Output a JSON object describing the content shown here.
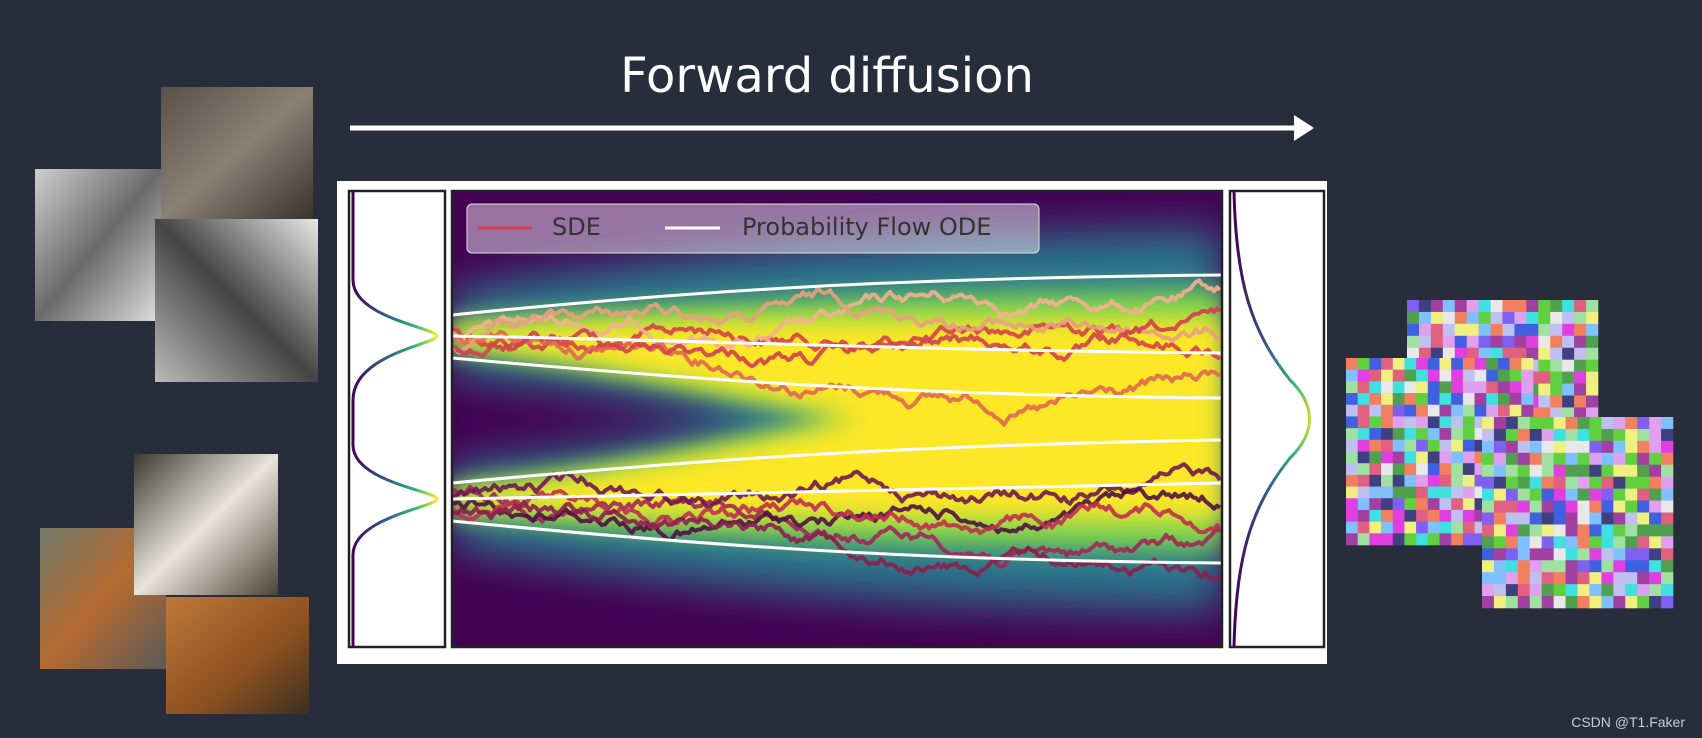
{
  "title": "Forward diffusion",
  "legend": [
    {
      "label": "SDE"
    },
    {
      "label": "Probability Flow ODE"
    }
  ],
  "watermark": "CSDN @T1.Faker"
}
